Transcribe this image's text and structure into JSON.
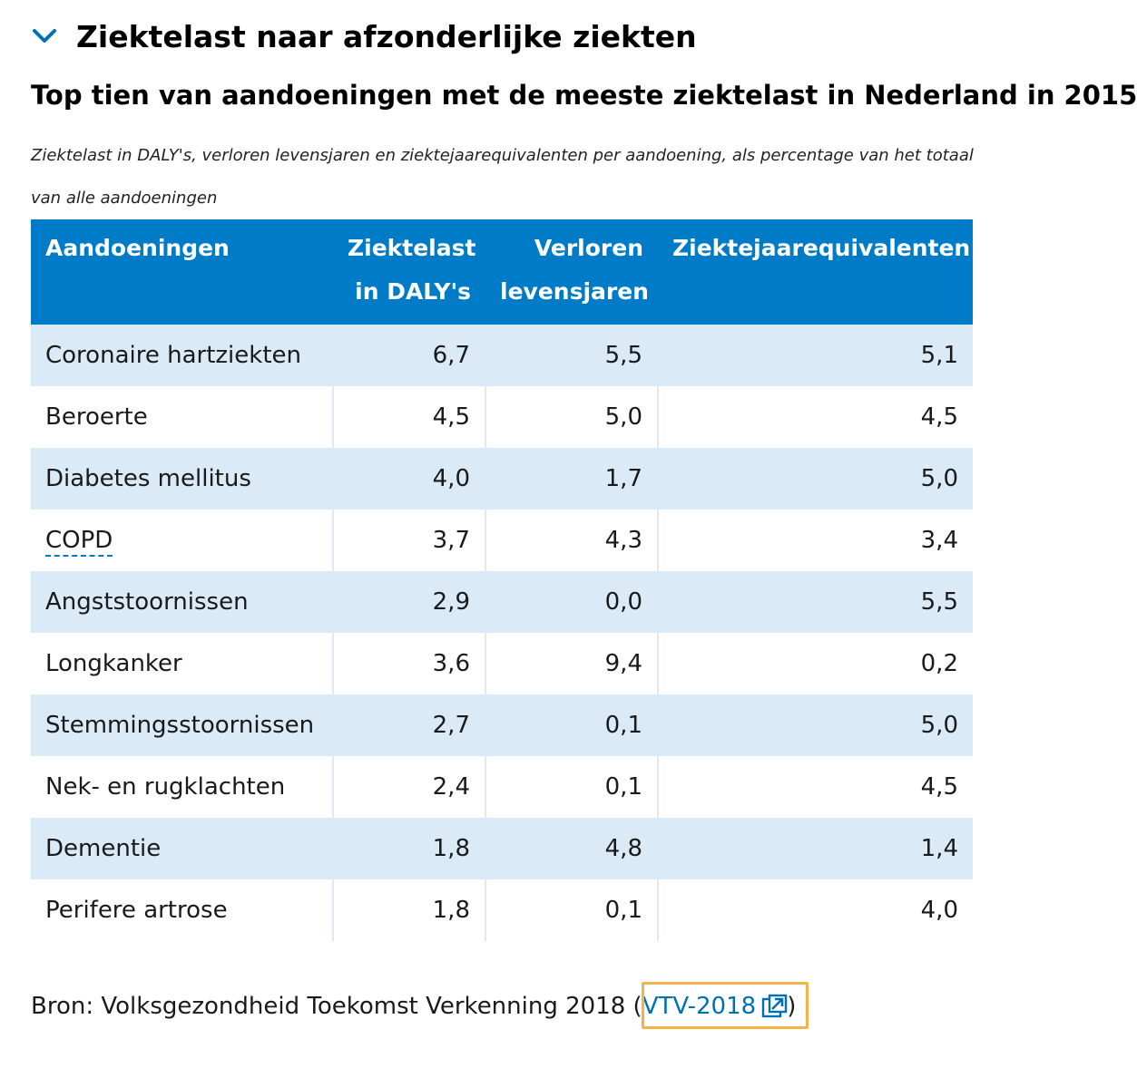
{
  "section": {
    "title": "Ziektelast naar afzonderlijke ziekten",
    "icon": "chevron-down-icon"
  },
  "table_title": "Top tien van aandoeningen met de meeste ziektelast in Nederland in 2015",
  "caption": "Ziektelast in DALY's, verloren levensjaren en ziektejaarequivalenten per aandoening, als percentage van het totaal van alle aandoeningen",
  "table": {
    "headers": {
      "condition": "Aandoeningen",
      "daly_line1": "Ziektelast",
      "daly_line2": "in DALY's",
      "lost_line1": "Verloren",
      "lost_line2": "levensjaren",
      "yld": "Ziektejaarequivalenten"
    },
    "rows": [
      {
        "condition": "Coronaire hartziekten",
        "daly": "6,7",
        "lost": "5,5",
        "yld": "5,1"
      },
      {
        "condition": "Beroerte",
        "daly": "4,5",
        "lost": "5,0",
        "yld": "4,5"
      },
      {
        "condition": "Diabetes mellitus",
        "daly": "4,0",
        "lost": "1,7",
        "yld": "5,0"
      },
      {
        "condition": "COPD",
        "daly": "3,7",
        "lost": "4,3",
        "yld": "3,4"
      },
      {
        "condition": "Angststoornissen",
        "daly": "2,9",
        "lost": "0,0",
        "yld": "5,5"
      },
      {
        "condition": "Longkanker",
        "daly": "3,6",
        "lost": "9,4",
        "yld": "0,2"
      },
      {
        "condition": "Stemmingsstoornissen",
        "daly": "2,7",
        "lost": "0,1",
        "yld": "5,0"
      },
      {
        "condition": "Nek- en rugklachten",
        "daly": "2,4",
        "lost": "0,1",
        "yld": "4,5"
      },
      {
        "condition": "Dementie",
        "daly": "1,8",
        "lost": "4,8",
        "yld": "1,4"
      },
      {
        "condition": "Perifere artrose",
        "daly": "1,8",
        "lost": "0,1",
        "yld": "4,0"
      }
    ]
  },
  "source": {
    "prefix": "Bron: Volksgezondheid Toekomst Verkenning 2018 (",
    "link_label": "VTV-2018",
    "suffix": ")",
    "link_icon": "external-link-icon"
  },
  "colors": {
    "header_bg": "#007bc7",
    "stripe_bg": "#daeaf7",
    "link": "#0070b4",
    "focus_outline": "#f6b24a"
  }
}
